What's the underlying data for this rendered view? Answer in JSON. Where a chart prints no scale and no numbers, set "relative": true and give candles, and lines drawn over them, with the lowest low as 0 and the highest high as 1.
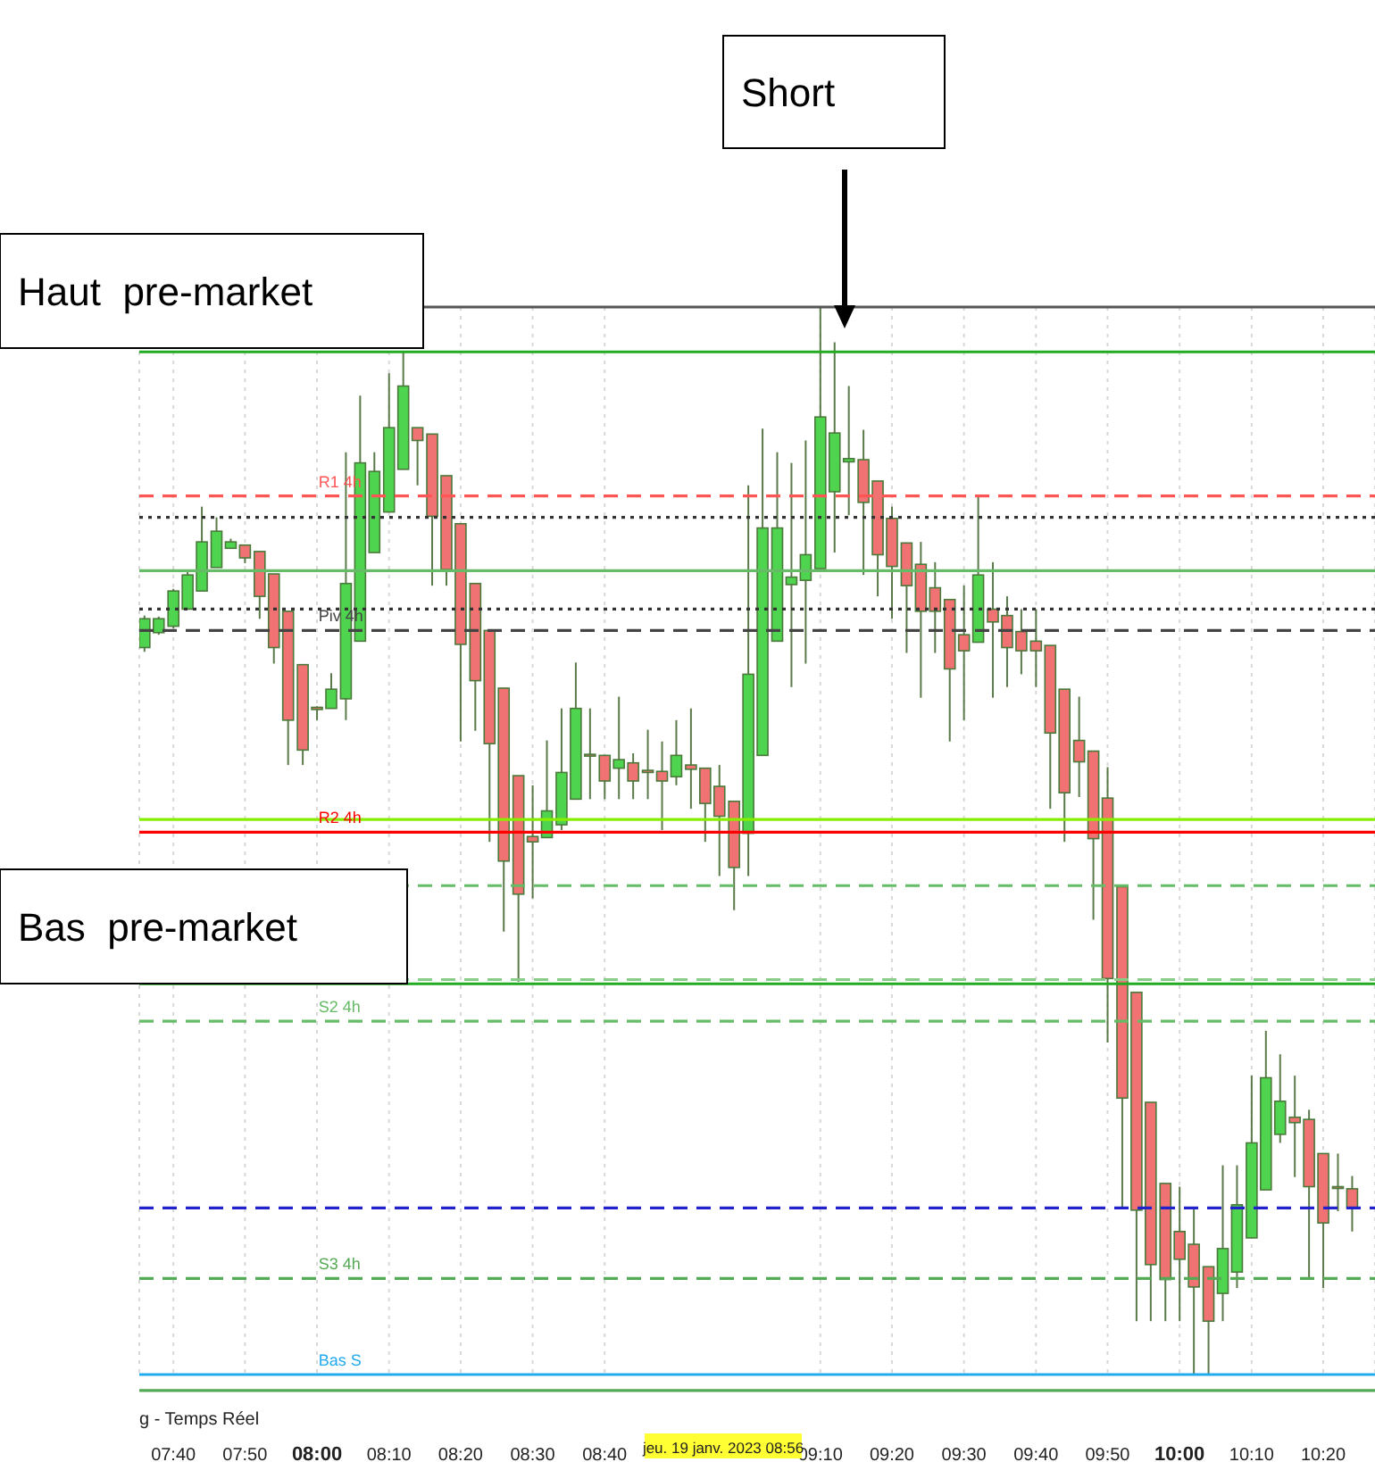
{
  "chart_data": {
    "type": "candlestick",
    "relative": true,
    "x": [
      7.6,
      7.633,
      7.667,
      7.7,
      7.733,
      7.767,
      7.8,
      7.833,
      7.867,
      7.9,
      7.933,
      7.967,
      8,
      8.033,
      8.067,
      8.1,
      8.133,
      8.167,
      8.2,
      8.233,
      8.267,
      8.3,
      8.333,
      8.367,
      8.4,
      8.433,
      8.467,
      8.5,
      8.533,
      8.567,
      8.6,
      8.633,
      8.667,
      8.7,
      8.733,
      8.767,
      8.8,
      8.833,
      8.867,
      8.9,
      8.933,
      8.967,
      9,
      9.033,
      9.067,
      9.1,
      9.133,
      9.167,
      9.2,
      9.233,
      9.267,
      9.3,
      9.333,
      9.367,
      9.4,
      9.433,
      9.467,
      9.5,
      9.533,
      9.567,
      9.6,
      9.633,
      9.667,
      9.7,
      9.733,
      9.767,
      9.8,
      9.833,
      9.867,
      9.9,
      9.933,
      9.967,
      10,
      10.033,
      10.067,
      10.1,
      10.133,
      10.167,
      10.2,
      10.233,
      10.267,
      10.3,
      10.333,
      10.367,
      10.4
    ],
    "ohlc": [
      [
        0.681,
        0.711,
        0.677,
        0.708
      ],
      [
        0.695,
        0.71,
        0.693,
        0.708
      ],
      [
        0.701,
        0.736,
        0.699,
        0.734
      ],
      [
        0.717,
        0.753,
        0.717,
        0.749
      ],
      [
        0.734,
        0.813,
        0.734,
        0.78
      ],
      [
        0.756,
        0.803,
        0.756,
        0.79
      ],
      [
        0.774,
        0.783,
        0.774,
        0.78
      ],
      [
        0.777,
        0.777,
        0.76,
        0.765
      ],
      [
        0.771,
        0.771,
        0.708,
        0.729
      ],
      [
        0.75,
        0.75,
        0.666,
        0.681
      ],
      [
        0.715,
        0.715,
        0.571,
        0.613
      ],
      [
        0.665,
        0.665,
        0.571,
        0.585
      ],
      [
        0.625,
        0.626,
        0.613,
        0.623
      ],
      [
        0.624,
        0.657,
        0.624,
        0.642
      ],
      [
        0.633,
        0.864,
        0.613,
        0.741
      ],
      [
        0.687,
        0.917,
        0.687,
        0.854
      ],
      [
        0.77,
        0.864,
        0.77,
        0.846
      ],
      [
        0.808,
        0.938,
        0.808,
        0.887
      ],
      [
        0.848,
        0.958,
        0.848,
        0.926
      ],
      [
        0.887,
        0.887,
        0.833,
        0.875
      ],
      [
        0.881,
        0.881,
        0.739,
        0.804
      ],
      [
        0.842,
        0.842,
        0.739,
        0.754
      ],
      [
        0.797,
        0.797,
        0.593,
        0.684
      ],
      [
        0.741,
        0.741,
        0.603,
        0.65
      ],
      [
        0.697,
        0.697,
        0.499,
        0.591
      ],
      [
        0.643,
        0.643,
        0.415,
        0.481
      ],
      [
        0.561,
        0.561,
        0.368,
        0.45
      ],
      [
        0.504,
        0.552,
        0.446,
        0.499
      ],
      [
        0.503,
        0.594,
        0.503,
        0.528
      ],
      [
        0.515,
        0.624,
        0.51,
        0.564
      ],
      [
        0.539,
        0.667,
        0.539,
        0.624
      ],
      [
        0.581,
        0.624,
        0.539,
        0.58
      ],
      [
        0.58,
        0.58,
        0.539,
        0.556
      ],
      [
        0.568,
        0.635,
        0.539,
        0.576
      ],
      [
        0.573,
        0.582,
        0.539,
        0.556
      ],
      [
        0.566,
        0.604,
        0.539,
        0.564
      ],
      [
        0.565,
        0.593,
        0.51,
        0.556
      ],
      [
        0.56,
        0.613,
        0.552,
        0.58
      ],
      [
        0.571,
        0.624,
        0.53,
        0.567
      ],
      [
        0.568,
        0.568,
        0.499,
        0.535
      ],
      [
        0.551,
        0.571,
        0.467,
        0.523
      ],
      [
        0.537,
        0.537,
        0.435,
        0.475
      ],
      [
        0.507,
        0.833,
        0.467,
        0.656
      ],
      [
        0.58,
        0.886,
        0.58,
        0.793
      ],
      [
        0.687,
        0.864,
        0.687,
        0.793
      ],
      [
        0.74,
        0.854,
        0.644,
        0.747
      ],
      [
        0.744,
        0.875,
        0.666,
        0.768
      ],
      [
        0.755,
        1,
        0.755,
        0.897
      ],
      [
        0.827,
        0.967,
        0.77,
        0.882
      ],
      [
        0.855,
        0.926,
        0.805,
        0.858
      ],
      [
        0.857,
        0.885,
        0.749,
        0.817
      ],
      [
        0.837,
        0.837,
        0.729,
        0.768
      ],
      [
        0.802,
        0.813,
        0.708,
        0.757
      ],
      [
        0.779,
        0.779,
        0.676,
        0.739
      ],
      [
        0.759,
        0.78,
        0.634,
        0.715
      ],
      [
        0.737,
        0.761,
        0.676,
        0.715
      ],
      [
        0.726,
        0.726,
        0.593,
        0.661
      ],
      [
        0.693,
        0.739,
        0.613,
        0.678
      ],
      [
        0.686,
        0.822,
        0.686,
        0.749
      ],
      [
        0.717,
        0.761,
        0.634,
        0.705
      ],
      [
        0.711,
        0.729,
        0.644,
        0.681
      ],
      [
        0.696,
        0.717,
        0.656,
        0.678
      ],
      [
        0.687,
        0.717,
        0.644,
        0.678
      ],
      [
        0.683,
        0.683,
        0.53,
        0.601
      ],
      [
        0.642,
        0.642,
        0.499,
        0.545
      ],
      [
        0.594,
        0.635,
        0.541,
        0.574
      ],
      [
        0.584,
        0.584,
        0.426,
        0.502
      ],
      [
        0.54,
        0.569,
        0.311,
        0.371
      ],
      [
        0.457,
        0.457,
        0.156,
        0.259
      ],
      [
        0.358,
        0.358,
        0.05,
        0.154
      ],
      [
        0.255,
        0.255,
        0.05,
        0.103
      ],
      [
        0.179,
        0.179,
        0.05,
        0.089
      ],
      [
        0.134,
        0.176,
        0.05,
        0.108
      ],
      [
        0.122,
        0.155,
        0,
        0.082
      ],
      [
        0.101,
        0.101,
        0,
        0.05
      ],
      [
        0.076,
        0.196,
        0.05,
        0.118
      ],
      [
        0.096,
        0.196,
        0.081,
        0.159
      ],
      [
        0.128,
        0.28,
        0.128,
        0.217
      ],
      [
        0.173,
        0.322,
        0.173,
        0.278
      ],
      [
        0.225,
        0.3,
        0.217,
        0.256
      ],
      [
        0.241,
        0.28,
        0.185,
        0.236
      ],
      [
        0.239,
        0.248,
        0.091,
        0.176
      ],
      [
        0.207,
        0.207,
        0.081,
        0.142
      ],
      [
        0.176,
        0.207,
        0.153,
        0.175
      ],
      [
        0.174,
        0.186,
        0.134,
        0.156
      ]
    ],
    "xlim": [
      7.588,
      10.453
    ],
    "xticks": [
      {
        "value": 7.667,
        "label": "07:40"
      },
      {
        "value": 7.833,
        "label": "07:50"
      },
      {
        "value": 8,
        "label": "08:00"
      },
      {
        "value": 8.167,
        "label": "08:10"
      },
      {
        "value": 8.333,
        "label": "08:20"
      },
      {
        "value": 8.5,
        "label": "08:30"
      },
      {
        "value": 8.667,
        "label": "08:40"
      },
      {
        "value": 9.167,
        "label": "09:10"
      },
      {
        "value": 9.333,
        "label": "09:20"
      },
      {
        "value": 9.5,
        "label": "09:30"
      },
      {
        "value": 9.667,
        "label": "09:40"
      },
      {
        "value": 9.833,
        "label": "09:50"
      },
      {
        "value": 10,
        "label": "10:00"
      },
      {
        "value": 10.167,
        "label": "10:10"
      },
      {
        "value": 10.333,
        "label": "10:20"
      }
    ],
    "grid": "x",
    "ref_lines": [
      {
        "axis": "y",
        "value": 1,
        "color": "#555555",
        "line_style": "solid"
      },
      {
        "axis": "y",
        "value": 0.958,
        "color": "#22aa22",
        "line_style": "solid"
      },
      {
        "axis": "y",
        "value": 0.823,
        "label": "R1 4h",
        "color": "#ff5555",
        "line_style": "dashed"
      },
      {
        "axis": "y",
        "value": 0.803,
        "color": "#333333",
        "line_style": "dotted"
      },
      {
        "axis": "y",
        "value": 0.753,
        "color": "#66bb66",
        "line_style": "solid"
      },
      {
        "axis": "y",
        "value": 0.717,
        "color": "#333333",
        "line_style": "dotted"
      },
      {
        "axis": "y",
        "value": 0.697,
        "label": "Piv 4h",
        "color": "#444444",
        "line_style": "dashed"
      },
      {
        "axis": "y",
        "value": 0.52,
        "color": "#88ee00",
        "line_style": "solid"
      },
      {
        "axis": "y",
        "value": 0.508,
        "label": "R2 4h",
        "color": "#ff0000",
        "line_style": "solid"
      },
      {
        "axis": "y",
        "value": 0.458,
        "color": "#66bb66",
        "line_style": "dashed"
      },
      {
        "axis": "y",
        "value": 0.37,
        "color": "#88cc88",
        "line_style": "dashed"
      },
      {
        "axis": "y",
        "value": 0.366,
        "color": "#22aa22",
        "line_style": "solid"
      },
      {
        "axis": "y",
        "value": 0.331,
        "label": "S2 4h",
        "color": "#66bb66",
        "line_style": "dashed"
      },
      {
        "axis": "y",
        "value": 0.156,
        "color": "#2222cc",
        "line_style": "dashed"
      },
      {
        "axis": "y",
        "value": 0.09,
        "label": "S3 4h",
        "color": "#55aa55",
        "line_style": "dashed"
      },
      {
        "axis": "y",
        "value": 0,
        "label": "Bas S",
        "color": "#22aaee",
        "line_style": "solid"
      },
      {
        "axis": "y",
        "value": -0.015,
        "color": "#55aa55",
        "line_style": "solid"
      }
    ],
    "annotations": [
      "Short",
      "Haut  pre-market",
      "Bas  pre-market",
      "g - Temps Réel",
      "jeu. 19 janv. 2023 08:56"
    ]
  }
}
